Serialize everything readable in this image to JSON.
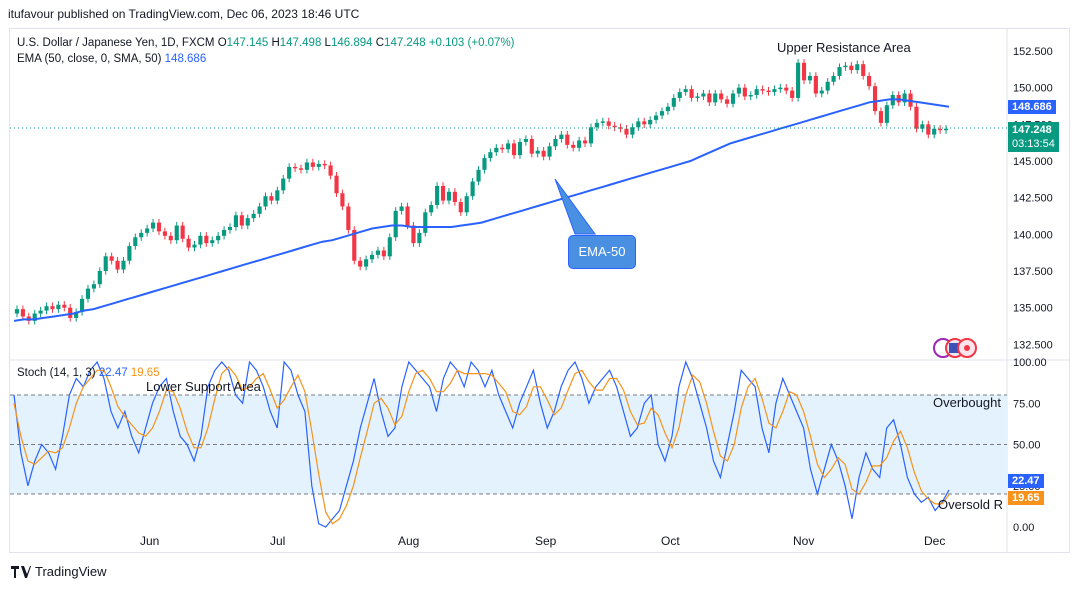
{
  "caption": "itufavour published on TradingView.com, Dec 06, 2023 18:46 UTC",
  "legend": {
    "symbol": "U.S. Dollar / Japanese Yen, 1D, FXCM",
    "o_label": "O",
    "o": "147.145",
    "h_label": "H",
    "h": "147.498",
    "l_label": "L",
    "l": "146.894",
    "c_label": "C",
    "c": "147.248",
    "change": "+0.103 (+0.07%)",
    "ema_label": "EMA (50, close, 0, SMA, 50)",
    "ema_value": "148.686"
  },
  "stoch_legend": {
    "label": "Stoch (14, 1, 3)",
    "k": "22.47",
    "d": "19.65"
  },
  "annotations": {
    "upper": "Upper Resistance Area",
    "lower": "Lower Support Area",
    "overbought": "Overbought",
    "oversold": "Oversold R",
    "ema_callout": "EMA-50"
  },
  "tags": {
    "ema": "148.686",
    "price": "147.248",
    "countdown": "03:13:54",
    "stoch_k": "22.47",
    "stoch_d": "19.65"
  },
  "colors": {
    "up": "#089981",
    "down": "#f23645",
    "ema": "#2962ff",
    "k": "#2962ff",
    "d": "#f7931a",
    "band": "#e3f2fd"
  },
  "footer": "TradingView",
  "chart_data": [
    {
      "type": "candlestick",
      "title": "U.S. Dollar / Japanese Yen, 1D, FXCM",
      "y_ticks": [
        "152.500",
        "150.000",
        "147.500",
        "145.000",
        "142.500",
        "140.000",
        "137.500",
        "135.000",
        "132.500"
      ],
      "ylim": [
        131.5,
        154.0
      ],
      "x_ticks": [
        "Jun",
        "Jul",
        "Aug",
        "Sep",
        "Oct",
        "Nov",
        "Dec"
      ],
      "closes": [
        134.9,
        134.4,
        134.1,
        134.6,
        134.8,
        135.1,
        134.9,
        135.2,
        135.0,
        134.3,
        134.7,
        135.6,
        136.3,
        136.6,
        137.5,
        138.5,
        138.2,
        137.6,
        138.2,
        139.2,
        139.8,
        140.1,
        140.4,
        140.8,
        140.2,
        139.9,
        139.6,
        140.6,
        139.7,
        139.1,
        139.3,
        139.9,
        139.4,
        139.6,
        139.9,
        140.3,
        140.5,
        141.3,
        140.6,
        141.1,
        141.4,
        141.9,
        142.6,
        142.3,
        143.0,
        143.8,
        144.6,
        144.5,
        144.4,
        144.9,
        144.6,
        144.8,
        144.7,
        144.0,
        142.8,
        141.9,
        140.3,
        138.2,
        137.8,
        138.3,
        138.6,
        138.9,
        138.5,
        139.8,
        141.6,
        141.9,
        140.6,
        139.4,
        140.1,
        141.5,
        142.0,
        143.3,
        142.3,
        142.9,
        142.2,
        141.5,
        142.6,
        143.6,
        144.4,
        145.2,
        145.6,
        145.9,
        145.8,
        146.2,
        145.4,
        146.3,
        146.5,
        145.5,
        145.7,
        145.3,
        146.0,
        146.5,
        146.8,
        146.1,
        145.9,
        146.4,
        146.2,
        147.3,
        147.6,
        147.7,
        147.4,
        147.3,
        147.2,
        146.8,
        147.3,
        147.7,
        147.5,
        147.8,
        148.1,
        148.4,
        148.7,
        149.3,
        149.7,
        149.9,
        149.3,
        149.4,
        149.6,
        149.0,
        149.6,
        149.2,
        148.9,
        149.6,
        150.0,
        149.4,
        149.5,
        149.9,
        149.8,
        149.7,
        149.9,
        150.0,
        149.8,
        149.3,
        151.7,
        150.5,
        150.8,
        149.6,
        149.8,
        150.4,
        150.8,
        151.4,
        151.5,
        151.2,
        151.6,
        150.8,
        150.1,
        148.4,
        147.6,
        148.8,
        149.5,
        149.0,
        149.6,
        148.7,
        147.2,
        147.5,
        146.8,
        147.2,
        147.1,
        147.2
      ],
      "ema_50": [
        134.1,
        134.2,
        134.2,
        134.3,
        134.4,
        134.5,
        134.6,
        134.8,
        134.9,
        135.1,
        135.3,
        135.5,
        135.7,
        135.9,
        136.1,
        136.3,
        136.5,
        136.7,
        136.9,
        137.1,
        137.3,
        137.5,
        137.7,
        137.9,
        138.1,
        138.3,
        138.5,
        138.7,
        138.9,
        139.1,
        139.3,
        139.5,
        139.6,
        139.8,
        140.0,
        140.2,
        140.4,
        140.5,
        140.6,
        140.6,
        140.5,
        140.5,
        140.5,
        140.5,
        140.5,
        140.6,
        140.7,
        140.8,
        141.0,
        141.2,
        141.4,
        141.6,
        141.8,
        142.0,
        142.2,
        142.4,
        142.6,
        142.8,
        143.0,
        143.2,
        143.4,
        143.6,
        143.8,
        144.0,
        144.2,
        144.4,
        144.6,
        144.8,
        145.0,
        145.3,
        145.6,
        145.9,
        146.2,
        146.4,
        146.6,
        146.8,
        147.0,
        147.2,
        147.4,
        147.6,
        147.8,
        148.0,
        148.2,
        148.4,
        148.6,
        148.8,
        149.0,
        149.1,
        149.2,
        149.2,
        149.1,
        149.0,
        148.9,
        148.8,
        148.7
      ],
      "last_price": 147.248,
      "ema_last": 148.686
    },
    {
      "type": "line",
      "title": "Stoch (14, 1, 3)",
      "y_ticks": [
        "100.00",
        "75.00",
        "50.00",
        "25.00",
        "0.00"
      ],
      "ylim": [
        0,
        100
      ],
      "levels": [
        80,
        50,
        20
      ],
      "series": [
        {
          "name": "%K",
          "color": "#2962ff",
          "values": [
            80,
            45,
            25,
            40,
            50,
            45,
            35,
            55,
            80,
            90,
            85,
            95,
            100,
            90,
            70,
            60,
            70,
            55,
            45,
            60,
            75,
            85,
            90,
            70,
            55,
            50,
            40,
            55,
            85,
            95,
            100,
            95,
            80,
            75,
            100,
            95,
            85,
            70,
            60,
            100,
            95,
            80,
            70,
            25,
            2,
            0,
            5,
            10,
            25,
            40,
            60,
            75,
            90,
            70,
            55,
            60,
            85,
            100,
            95,
            90,
            85,
            70,
            90,
            100,
            95,
            85,
            100,
            95,
            85,
            95,
            80,
            70,
            60,
            75,
            85,
            95,
            75,
            60,
            70,
            85,
            95,
            100,
            90,
            75,
            85,
            90,
            95,
            85,
            70,
            55,
            60,
            75,
            80,
            50,
            40,
            55,
            85,
            100,
            90,
            75,
            60,
            40,
            30,
            50,
            70,
            95,
            90,
            85,
            60,
            45,
            75,
            90,
            80,
            70,
            60,
            35,
            20,
            35,
            50,
            40,
            25,
            5,
            30,
            45,
            35,
            30,
            60,
            65,
            50,
            30,
            20,
            15,
            18,
            10,
            15,
            22.47
          ]
        },
        {
          "name": "%D",
          "color": "#f7931a",
          "values": [
            75,
            55,
            40,
            38,
            42,
            46,
            45,
            48,
            60,
            75,
            85,
            90,
            95,
            95,
            85,
            73,
            67,
            62,
            57,
            55,
            60,
            70,
            83,
            82,
            72,
            58,
            48,
            48,
            60,
            78,
            93,
            97,
            92,
            83,
            85,
            90,
            93,
            83,
            72,
            77,
            85,
            92,
            82,
            58,
            32,
            9,
            2,
            5,
            13,
            25,
            42,
            58,
            75,
            78,
            72,
            62,
            67,
            82,
            93,
            95,
            90,
            82,
            82,
            87,
            95,
            93,
            93,
            93,
            93,
            92,
            87,
            82,
            70,
            68,
            73,
            85,
            85,
            77,
            68,
            72,
            83,
            93,
            95,
            88,
            83,
            83,
            90,
            90,
            83,
            70,
            62,
            63,
            72,
            68,
            57,
            48,
            60,
            80,
            92,
            88,
            75,
            58,
            43,
            40,
            50,
            72,
            85,
            90,
            78,
            63,
            60,
            70,
            82,
            80,
            70,
            55,
            38,
            30,
            35,
            42,
            38,
            23,
            20,
            27,
            37,
            37,
            42,
            52,
            58,
            48,
            33,
            22,
            17,
            14,
            14,
            19.65
          ]
        }
      ],
      "last_k": 22.47,
      "last_d": 19.65
    }
  ]
}
